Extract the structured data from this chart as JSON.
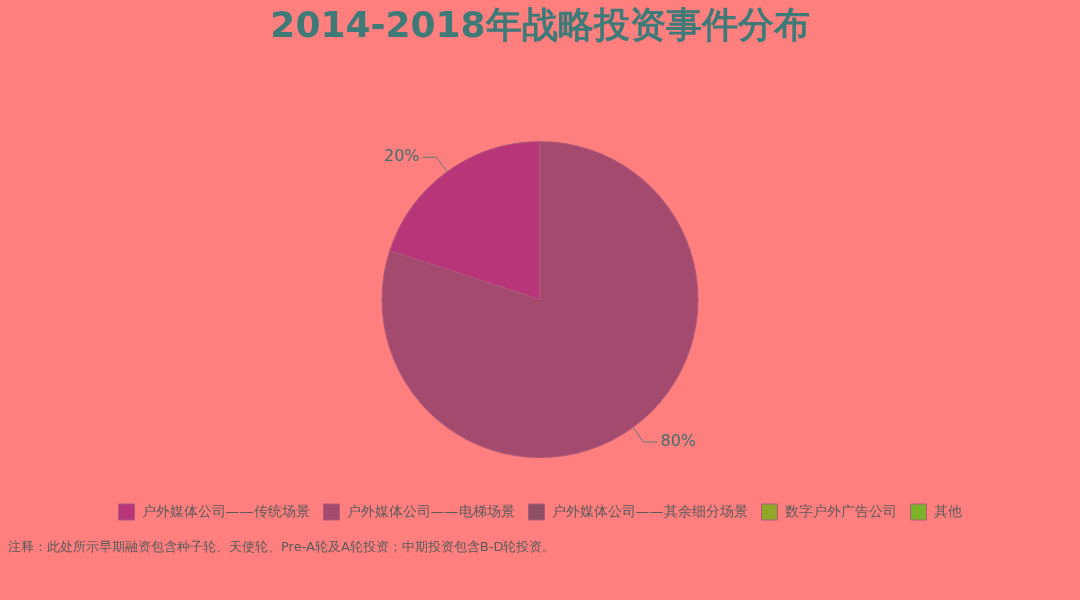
{
  "chart_data": {
    "type": "pie",
    "title": "2014-2018年战略投资事件分布",
    "categories": [
      "户外媒体公司——传统场景",
      "户外媒体公司——电梯场景",
      "户外媒体公司——其余细分场景",
      "数字户外广告公司",
      "其他"
    ],
    "values": [
      20,
      80,
      0,
      0,
      0
    ],
    "colors": [
      "#b9357a",
      "#a34a6e",
      "#8e5065",
      "#8fa82a",
      "#7db32a"
    ],
    "value_labels": [
      "20%",
      "80%",
      null,
      null,
      null
    ],
    "legend": "bottom",
    "annotations": [
      "注释：此处所示早期融资包含种子轮、天使轮、Pre-A轮及A轮投资；中期投资包含B-D轮投资。"
    ]
  }
}
